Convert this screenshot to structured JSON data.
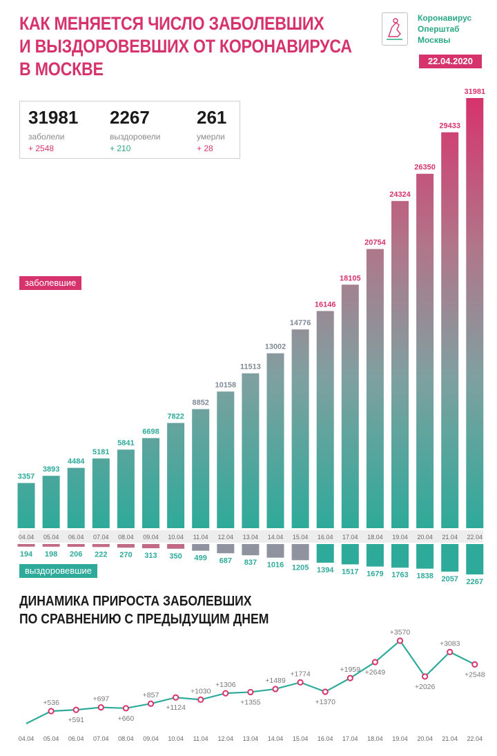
{
  "header": {
    "title_lines": [
      "КАК МЕНЯЕТСЯ ЧИСЛО ЗАБОЛЕВШИХ",
      "И ВЫЗДОРОВЕВШИХ ОТ КОРОНАВИРУСА",
      "В МОСКВЕ"
    ],
    "logo_lines": [
      "Коронавирус",
      "Оперштаб",
      "Москвы"
    ],
    "date": "22.04.2020"
  },
  "stats": [
    {
      "value": "31981",
      "label": "заболели",
      "increment": "+ 2548"
    },
    {
      "value": "2267",
      "label": "выздоровели",
      "increment": "+ 210"
    },
    {
      "value": "261",
      "label": "умерли",
      "increment": "+ 28"
    }
  ],
  "colors": {
    "pink": "#d6336c",
    "teal": "#2eaa9a",
    "dark": "#1a1a1a"
  },
  "chart_data": [
    {
      "type": "bar",
      "categories": [
        "04.04",
        "05.04",
        "06.04",
        "07.04",
        "08.04",
        "09.04",
        "10.04",
        "11.04",
        "12.04",
        "13.04",
        "14.04",
        "15.04",
        "16.04",
        "17.04",
        "18.04",
        "19.04",
        "20.04",
        "21.04",
        "22.04"
      ],
      "series": [
        {
          "name": "заболевшие",
          "values": [
            3357,
            3893,
            4484,
            5181,
            5841,
            6698,
            7822,
            8852,
            10158,
            11513,
            13002,
            14776,
            16146,
            18105,
            20754,
            24324,
            26350,
            29433,
            31981
          ]
        },
        {
          "name": "выздоровевшие",
          "values": [
            194,
            198,
            206,
            222,
            270,
            313,
            350,
            499,
            687,
            837,
            1016,
            1205,
            1394,
            1517,
            1679,
            1763,
            1838,
            2057,
            2267
          ]
        }
      ]
    },
    {
      "type": "line",
      "title": "ДИНАМИКА ПРИРОСТА ЗАБОЛЕВШИХ ПО СРАВНЕНИЮ С ПРЕДЫДУЩИМ ДНЕМ",
      "title_lines": [
        "ДИНАМИКА ПРИРОСТА ЗАБОЛЕВШИХ",
        "ПО СРАВНЕНИЮ С ПРЕДЫДУЩИМ ДНЕМ"
      ],
      "x": [
        "04.04",
        "05.04",
        "06.04",
        "07.04",
        "08.04",
        "09.04",
        "10.04",
        "11.04",
        "12.04",
        "13.04",
        "14.04",
        "15.04",
        "16.04",
        "17.04",
        "18.04",
        "19.04",
        "20.04",
        "21.04",
        "22.04"
      ],
      "values": [
        null,
        536,
        591,
        697,
        660,
        857,
        1124,
        1030,
        1306,
        1355,
        1489,
        1774,
        1370,
        1959,
        2649,
        3570,
        2026,
        3083,
        2548
      ],
      "labels": [
        "",
        "+536",
        "+591",
        "+697",
        "+660",
        "+857",
        "+1124",
        "+1030",
        "+1306",
        "+1355",
        "+1489",
        "+1774",
        "+1370",
        "+1959",
        "+2649",
        "+3570",
        "+2026",
        "+3083",
        "+2548"
      ]
    }
  ]
}
